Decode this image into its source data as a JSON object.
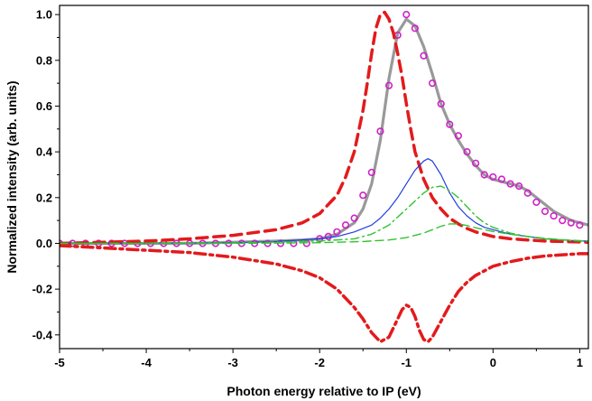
{
  "chart_data": {
    "type": "line",
    "title": "",
    "xlabel": "Photon energy relative to IP (eV)",
    "ylabel": "Normalized intensity (arb. units)",
    "xlim": [
      -5.0,
      1.1
    ],
    "ylim": [
      -0.46,
      1.04
    ],
    "grid": false,
    "legend": "none",
    "x_ticks": [
      -5,
      -4,
      -3,
      -2,
      -1,
      0,
      1
    ],
    "x_tick_labels": [
      "-5",
      "-4",
      "-3",
      "-2",
      "-1",
      "0",
      "1"
    ],
    "y_ticks": [
      -0.4,
      -0.2,
      0.0,
      0.2,
      0.4,
      0.6,
      0.8,
      1.0
    ],
    "y_tick_labels": [
      "-0.4",
      "-0.2",
      "0.0",
      "0.2",
      "0.4",
      "0.6",
      "0.8",
      "1.0"
    ],
    "series": [
      {
        "style": "gray-solid-thick",
        "color": "#999999",
        "x": [
          -5.0,
          -4.5,
          -4.0,
          -3.5,
          -3.0,
          -2.5,
          -2.2,
          -2.0,
          -1.8,
          -1.6,
          -1.5,
          -1.4,
          -1.3,
          -1.2,
          -1.1,
          -1.0,
          -0.9,
          -0.8,
          -0.7,
          -0.6,
          -0.5,
          -0.4,
          -0.3,
          -0.2,
          -0.1,
          0.0,
          0.1,
          0.2,
          0.3,
          0.4,
          0.5,
          0.6,
          0.7,
          0.8,
          0.9,
          1.0,
          1.1
        ],
        "y": [
          0.0,
          0.0,
          0.0,
          0.0,
          0.005,
          0.01,
          0.015,
          0.02,
          0.04,
          0.09,
          0.15,
          0.26,
          0.45,
          0.72,
          0.92,
          0.98,
          0.95,
          0.86,
          0.74,
          0.61,
          0.52,
          0.45,
          0.39,
          0.34,
          0.3,
          0.28,
          0.27,
          0.26,
          0.25,
          0.23,
          0.2,
          0.17,
          0.14,
          0.12,
          0.1,
          0.09,
          0.08
        ]
      },
      {
        "style": "magenta-circles",
        "color": "#d020c8",
        "x": [
          -5.0,
          -4.85,
          -4.7,
          -4.55,
          -4.4,
          -4.25,
          -4.1,
          -3.95,
          -3.8,
          -3.65,
          -3.5,
          -3.35,
          -3.2,
          -3.05,
          -2.9,
          -2.75,
          -2.6,
          -2.45,
          -2.3,
          -2.15,
          -2.0,
          -1.9,
          -1.8,
          -1.7,
          -1.6,
          -1.5,
          -1.4,
          -1.3,
          -1.2,
          -1.1,
          -1.0,
          -0.9,
          -0.8,
          -0.7,
          -0.6,
          -0.5,
          -0.4,
          -0.3,
          -0.2,
          -0.1,
          0.0,
          0.1,
          0.2,
          0.3,
          0.4,
          0.5,
          0.6,
          0.7,
          0.8,
          0.9,
          1.0
        ],
        "y": [
          0.0,
          0.0,
          0.0,
          0.0,
          0.0,
          0.0,
          0.0,
          0.0,
          0.0,
          0.0,
          0.0,
          0.0,
          0.0,
          0.0,
          0.0,
          0.0,
          0.0,
          0.0,
          0.0,
          0.0,
          0.02,
          0.03,
          0.05,
          0.08,
          0.11,
          0.21,
          0.31,
          0.49,
          0.69,
          0.91,
          1.0,
          0.94,
          0.82,
          0.7,
          0.61,
          0.52,
          0.47,
          0.4,
          0.35,
          0.3,
          0.29,
          0.28,
          0.26,
          0.25,
          0.22,
          0.18,
          0.14,
          0.12,
          0.1,
          0.09,
          0.08
        ]
      },
      {
        "style": "red-dashed-thick",
        "color": "#e31a1c",
        "x": [
          -5.0,
          -4.5,
          -4.0,
          -3.5,
          -3.0,
          -2.5,
          -2.2,
          -2.0,
          -1.8,
          -1.7,
          -1.6,
          -1.5,
          -1.45,
          -1.4,
          -1.35,
          -1.3,
          -1.25,
          -1.2,
          -1.15,
          -1.1,
          -1.05,
          -1.0,
          -0.95,
          -0.9,
          -0.8,
          -0.7,
          -0.6,
          -0.5,
          -0.4,
          -0.3,
          -0.2,
          -0.1,
          0.0,
          0.2,
          0.4,
          0.6,
          0.8,
          1.0,
          1.1
        ],
        "y": [
          0.0,
          0.005,
          0.01,
          0.02,
          0.035,
          0.06,
          0.09,
          0.13,
          0.21,
          0.29,
          0.4,
          0.58,
          0.7,
          0.83,
          0.94,
          1.0,
          1.01,
          0.98,
          0.92,
          0.83,
          0.73,
          0.61,
          0.5,
          0.4,
          0.28,
          0.2,
          0.15,
          0.11,
          0.085,
          0.065,
          0.05,
          0.04,
          0.03,
          0.02,
          0.015,
          0.01,
          0.008,
          0.006,
          0.005
        ]
      },
      {
        "style": "red-dashdot-thick",
        "color": "#e31a1c",
        "x": [
          -5.0,
          -4.5,
          -4.0,
          -3.5,
          -3.0,
          -2.5,
          -2.2,
          -2.0,
          -1.8,
          -1.6,
          -1.5,
          -1.4,
          -1.3,
          -1.2,
          -1.1,
          -1.05,
          -1.0,
          -0.95,
          -0.9,
          -0.85,
          -0.8,
          -0.75,
          -0.7,
          -0.6,
          -0.5,
          -0.4,
          -0.3,
          -0.2,
          -0.1,
          0.0,
          0.2,
          0.4,
          0.6,
          0.8,
          1.0,
          1.1
        ],
        "y": [
          -0.01,
          -0.02,
          -0.03,
          -0.04,
          -0.06,
          -0.09,
          -0.12,
          -0.15,
          -0.2,
          -0.28,
          -0.33,
          -0.39,
          -0.43,
          -0.41,
          -0.33,
          -0.29,
          -0.27,
          -0.28,
          -0.32,
          -0.38,
          -0.42,
          -0.43,
          -0.41,
          -0.34,
          -0.27,
          -0.21,
          -0.17,
          -0.14,
          -0.12,
          -0.1,
          -0.08,
          -0.065,
          -0.055,
          -0.05,
          -0.045,
          -0.045
        ]
      },
      {
        "style": "blue-solid-thin",
        "color": "#1f3fe0",
        "x": [
          -5.0,
          -4.0,
          -3.0,
          -2.5,
          -2.0,
          -1.8,
          -1.6,
          -1.4,
          -1.3,
          -1.2,
          -1.1,
          -1.0,
          -0.9,
          -0.8,
          -0.75,
          -0.7,
          -0.6,
          -0.5,
          -0.4,
          -0.3,
          -0.2,
          -0.1,
          0.0,
          0.2,
          0.4,
          0.6,
          0.8,
          1.0,
          1.1
        ],
        "y": [
          0.0,
          0.0,
          0.003,
          0.008,
          0.02,
          0.03,
          0.05,
          0.08,
          0.11,
          0.15,
          0.2,
          0.26,
          0.32,
          0.36,
          0.37,
          0.36,
          0.3,
          0.22,
          0.16,
          0.12,
          0.09,
          0.07,
          0.06,
          0.04,
          0.03,
          0.02,
          0.015,
          0.01,
          0.01
        ]
      },
      {
        "style": "green-dashdot",
        "color": "#2fc42f",
        "x": [
          -5.0,
          -4.0,
          -3.0,
          -2.0,
          -1.6,
          -1.4,
          -1.2,
          -1.0,
          -0.8,
          -0.7,
          -0.6,
          -0.5,
          -0.4,
          -0.3,
          -0.2,
          -0.1,
          0.0,
          0.2,
          0.4,
          0.6,
          0.8,
          1.0,
          1.1
        ],
        "y": [
          0.0,
          0.0,
          0.002,
          0.01,
          0.02,
          0.04,
          0.08,
          0.15,
          0.22,
          0.245,
          0.25,
          0.23,
          0.2,
          0.16,
          0.12,
          0.09,
          0.07,
          0.045,
          0.03,
          0.02,
          0.015,
          0.01,
          0.01
        ]
      },
      {
        "style": "green-dashed",
        "color": "#2fc42f",
        "x": [
          -5.0,
          -4.0,
          -3.0,
          -2.0,
          -1.5,
          -1.2,
          -1.0,
          -0.8,
          -0.7,
          -0.6,
          -0.5,
          -0.4,
          -0.3,
          -0.2,
          -0.1,
          0.0,
          0.2,
          0.4,
          0.6,
          0.8,
          1.0,
          1.1
        ],
        "y": [
          0.0,
          0.0,
          0.0,
          0.003,
          0.008,
          0.015,
          0.025,
          0.045,
          0.06,
          0.075,
          0.085,
          0.085,
          0.078,
          0.068,
          0.06,
          0.052,
          0.04,
          0.03,
          0.022,
          0.016,
          0.012,
          0.01
        ]
      }
    ]
  }
}
